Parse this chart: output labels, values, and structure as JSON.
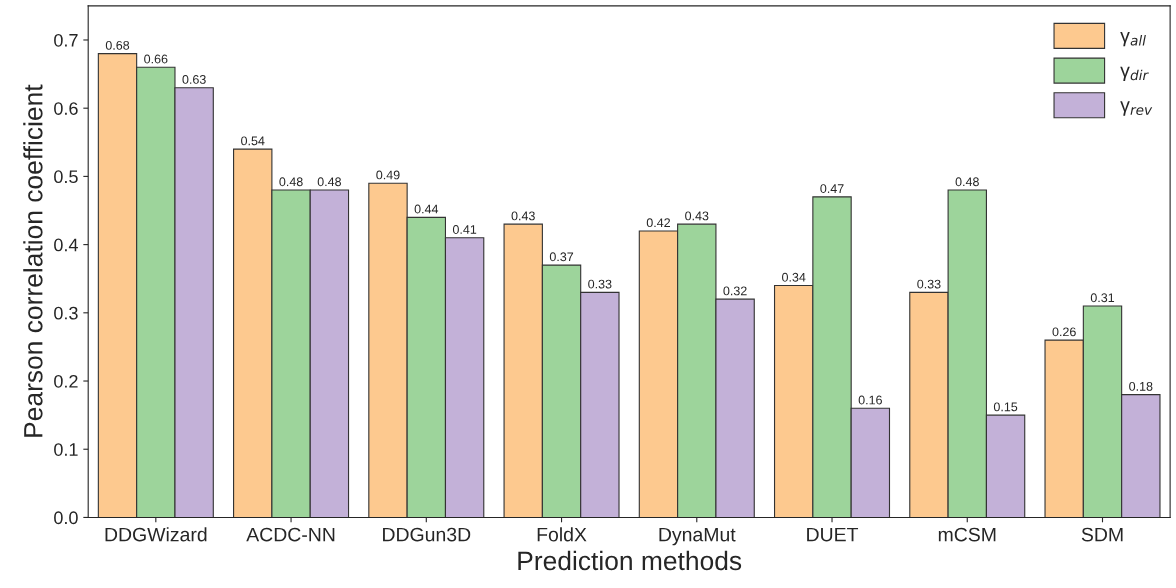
{
  "chart_data": {
    "type": "bar",
    "xlabel": "Prediction methods",
    "ylabel": "Pearson correlation coefficient",
    "categories": [
      "DDGWizard",
      "ACDC-NN",
      "DDGun3D",
      "FoldX",
      "DynaMut",
      "DUET",
      "mCSM",
      "SDM"
    ],
    "series": [
      {
        "name": "γ$_{all}$",
        "color": "#fdc98f",
        "values": [
          0.68,
          0.54,
          0.49,
          0.43,
          0.42,
          0.34,
          0.33,
          0.26
        ]
      },
      {
        "name": "γ$_{dir}$",
        "color": "#9dd49b",
        "values": [
          0.66,
          0.48,
          0.44,
          0.37,
          0.43,
          0.47,
          0.48,
          0.31
        ]
      },
      {
        "name": "γ$_{rev}$",
        "color": "#c3b1d8",
        "values": [
          0.63,
          0.48,
          0.41,
          0.33,
          0.32,
          0.16,
          0.15,
          0.18
        ]
      }
    ],
    "ylim": [
      0,
      0.75
    ],
    "yticks": [
      {
        "value": 0,
        "label": "0.0"
      },
      0.1,
      0.2,
      0.3,
      0.4,
      0.5,
      0.6,
      0.7
    ],
    "data_labels": true,
    "legend": "top right",
    "grid": false
  }
}
